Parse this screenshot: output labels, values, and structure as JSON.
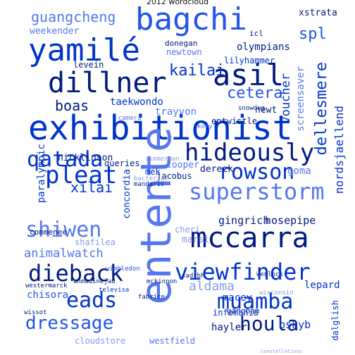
{
  "title": "2012 wordcloud",
  "words": [
    "exhibitionist",
    "bagchi",
    "yamilé",
    "dillner",
    "asil",
    "entente",
    "mccarra",
    "superstorm",
    "hideously",
    "rowson",
    "qatada",
    "pleat",
    "viewfinder",
    "dieback",
    "shiwen",
    "muamba",
    "eads",
    "houla",
    "dressage",
    "guangcheng",
    "cetera",
    "kailai",
    "animalwatch",
    "aldama",
    "boas",
    "olympians",
    "voucher",
    "screensaver",
    "dellesmere",
    "nordsjaellend",
    "spl",
    "xstrata",
    "weekender",
    "taekwondo",
    "trayvon",
    "xilai",
    "concordia",
    "looper",
    "goma",
    "jacobus",
    "dereck",
    "gingrich",
    "hosepipe",
    "cheri",
    "marsi",
    "lepard",
    "chisora",
    "macey",
    "gangnam",
    "hayler",
    "infomania",
    "bskyb",
    "cloudstore",
    "westfield",
    "newtown",
    "levein",
    "paralympic",
    "nicklinson",
    "shafilea",
    "commenee",
    "lilyhammer",
    "newt",
    "entwistle",
    "queries",
    "mek",
    "donegan",
    "icl",
    "dalglish",
    "ahmadinejad",
    "fabrice",
    "televisa",
    "mckinnon",
    "wimbledon",
    "westermarck",
    "wissot",
    "snowdog",
    "kory",
    "mandaric",
    "bacterial",
    "zimmerman",
    "camera",
    "wenlock",
    "sadrbh",
    "wisconsin",
    "constellations"
  ]
}
